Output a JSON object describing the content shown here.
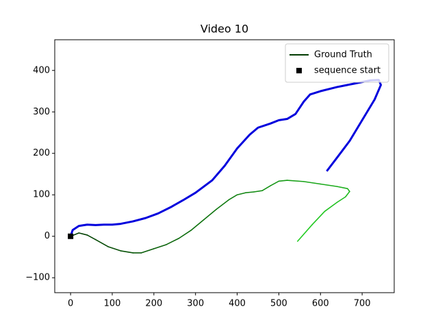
{
  "chart_data": {
    "type": "line",
    "title": "Video 10",
    "xlim": [
      -38,
      777
    ],
    "ylim": [
      -136,
      474
    ],
    "xticks": [
      0,
      100,
      200,
      300,
      400,
      500,
      600,
      700
    ],
    "yticks": [
      {
        "value": -100,
        "label": "−100"
      },
      0,
      100,
      200,
      300,
      400
    ],
    "legend": "upper right",
    "series": [
      {
        "name": "Ground Truth",
        "color": "#003a00",
        "color_end": "#22cc22",
        "x": [
          0,
          20,
          40,
          60,
          90,
          120,
          150,
          170,
          200,
          230,
          260,
          290,
          320,
          350,
          380,
          400,
          420,
          440,
          460,
          480,
          500,
          520,
          560,
          600,
          640,
          665,
          670,
          660,
          640,
          610,
          580,
          545
        ],
        "values": [
          0,
          8,
          3,
          -8,
          -25,
          -35,
          -40,
          -40,
          -30,
          -20,
          -5,
          15,
          40,
          65,
          88,
          100,
          105,
          107,
          110,
          122,
          133,
          135,
          132,
          126,
          120,
          115,
          108,
          95,
          82,
          60,
          28,
          -12
        ]
      },
      {
        "color": "#0000dd",
        "x": [
          0,
          5,
          20,
          40,
          60,
          80,
          100,
          120,
          150,
          180,
          210,
          240,
          270,
          300,
          340,
          370,
          400,
          430,
          450,
          480,
          500,
          520,
          540,
          560,
          575,
          600,
          640,
          680,
          720,
          740,
          745,
          730,
          700,
          670,
          640,
          615
        ],
        "values": [
          0,
          15,
          25,
          28,
          27,
          28,
          28,
          30,
          36,
          44,
          55,
          70,
          87,
          105,
          135,
          170,
          212,
          245,
          262,
          272,
          280,
          283,
          295,
          325,
          342,
          350,
          360,
          368,
          376,
          377,
          365,
          330,
          280,
          230,
          190,
          157
        ]
      }
    ],
    "markers": [
      {
        "name": "sequence start",
        "x": 0,
        "y": 0,
        "color": "#000000"
      }
    ]
  }
}
